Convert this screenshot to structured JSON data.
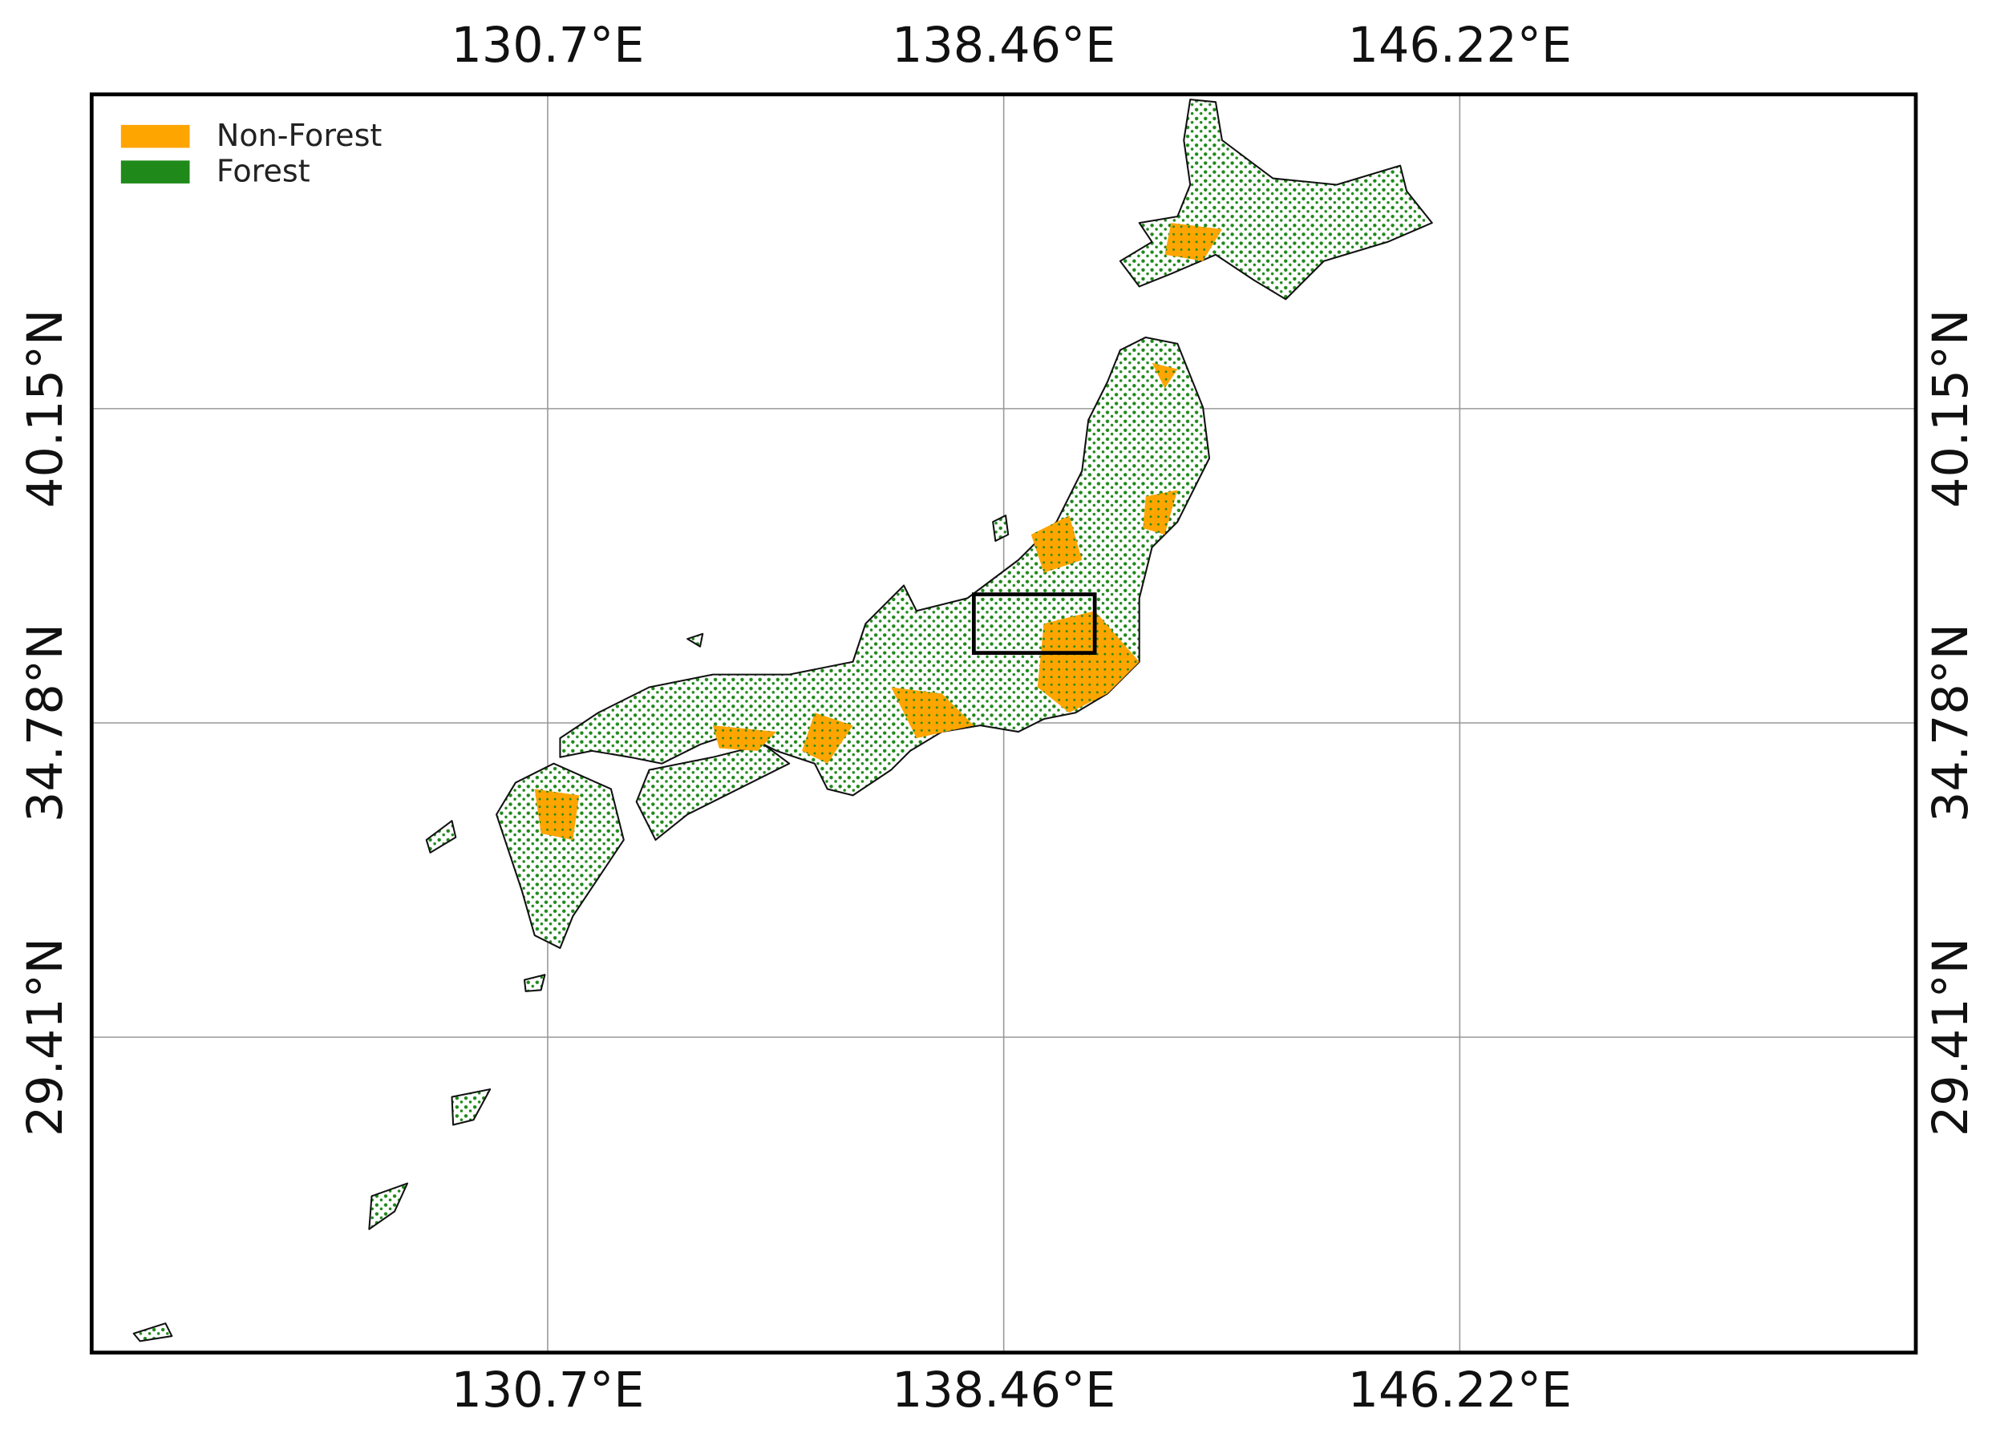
{
  "legend": [
    {
      "label": "Non-Forest",
      "color": "#ffa500"
    },
    {
      "label": "Forest",
      "color": "#1f8a1a"
    }
  ],
  "xlim": [
    122.94,
    153.98
  ],
  "ylim": [
    24.02,
    45.52
  ],
  "xticks": [
    {
      "value": 130.7,
      "label": "130.7°E"
    },
    {
      "value": 138.46,
      "label": "138.46°E"
    },
    {
      "value": 146.22,
      "label": "146.22°E"
    }
  ],
  "yticks": [
    {
      "value": 29.41,
      "label": "29.41°N"
    },
    {
      "value": 34.78,
      "label": "34.78°N"
    },
    {
      "value": 40.15,
      "label": "40.15°N"
    }
  ],
  "grid": true
}
